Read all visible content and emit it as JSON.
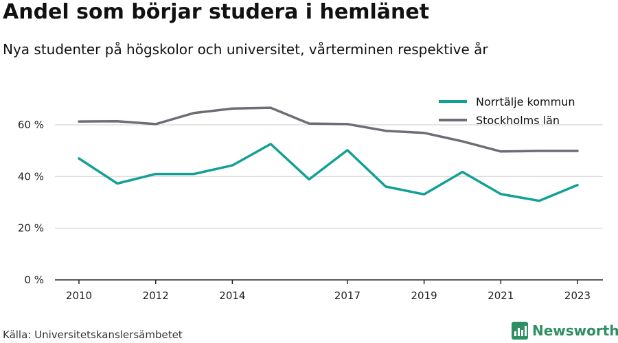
{
  "header": {
    "title": "Andel som börjar studera i hemlänet",
    "subtitle": "Nya studenter på högskolor och universitet, vårterminen respektive år"
  },
  "footer": {
    "source": "Källa: Universitetskanslersämbetet",
    "brand_name": "Newsworthy",
    "brand_icon": "bar-chart-icon"
  },
  "chart_data": {
    "type": "line",
    "title": "Andel som börjar studera i hemlänet",
    "subtitle": "Nya studenter på högskolor och universitet, vårterminen respektive år",
    "xlabel": "",
    "ylabel": "",
    "x": [
      2010,
      2011,
      2012,
      2013,
      2014,
      2015,
      2016,
      2017,
      2018,
      2019,
      2020,
      2021,
      2022,
      2023
    ],
    "x_ticks": [
      2010,
      2012,
      2014,
      2017,
      2019,
      2021,
      2023
    ],
    "y_ticks": [
      0,
      20,
      40,
      60
    ],
    "y_tick_labels": [
      "0 %",
      "20 %",
      "40 %",
      "60 %"
    ],
    "ylim": [
      0,
      72
    ],
    "grid": true,
    "legend_position": "top-right",
    "series": [
      {
        "name": "Norrtälje kommun",
        "color": "#12a096",
        "values": [
          47,
          37.3,
          41,
          41,
          44.3,
          52.6,
          38.9,
          50.2,
          36.1,
          33.1,
          41.8,
          33.2,
          30.6,
          36.7
        ]
      },
      {
        "name": "Stockholms län",
        "color": "#6f6c75",
        "values": [
          61.3,
          61.4,
          60.3,
          64.6,
          66.3,
          66.6,
          60.5,
          60.3,
          57.7,
          56.9,
          53.6,
          49.7,
          49.9,
          49.9
        ]
      }
    ]
  }
}
